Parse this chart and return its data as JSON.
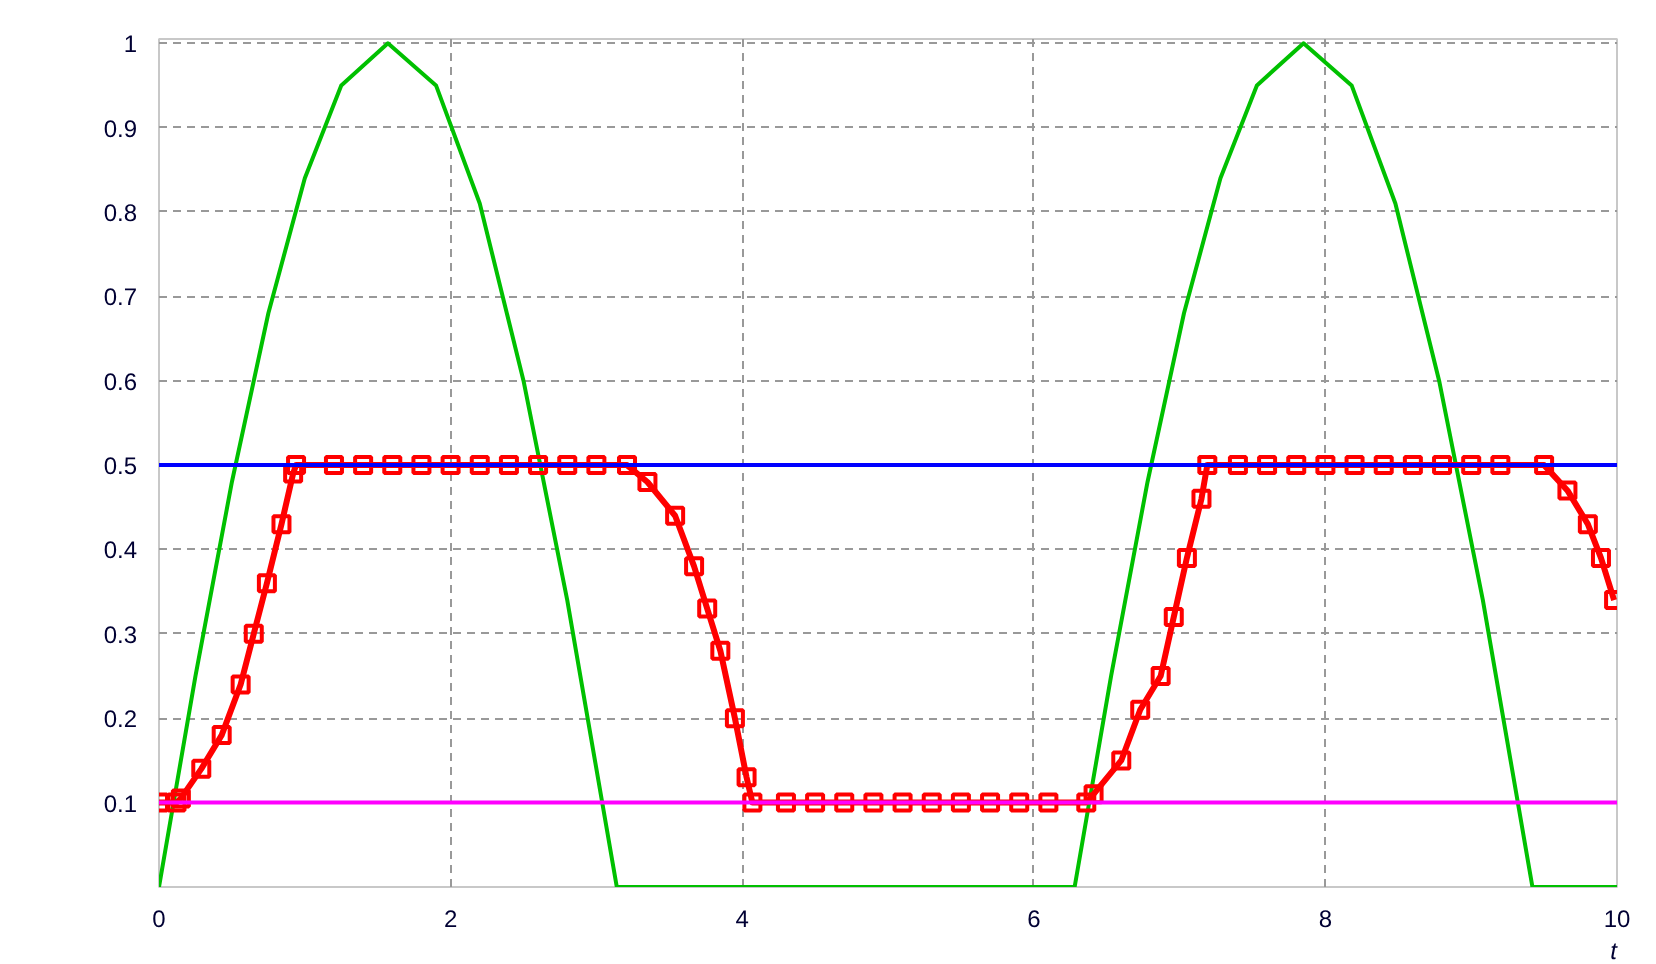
{
  "chart_data": {
    "type": "line",
    "xlabel": "t",
    "xlim": [
      0,
      10
    ],
    "ylim": [
      0,
      1.005
    ],
    "xticks": [
      0,
      2,
      4,
      6,
      8,
      10
    ],
    "yticks": [
      0.1,
      0.2,
      0.3,
      0.4,
      0.5,
      0.6,
      0.7,
      0.8,
      0.9,
      1
    ],
    "grid": true,
    "line_style": "solid",
    "series": [
      {
        "color": "#00c000",
        "marker": "none",
        "x": [
          0,
          0.25,
          0.5,
          0.75,
          1,
          1.25,
          1.57,
          1.9,
          2.2,
          2.5,
          2.8,
          3.14,
          6.28,
          6.53,
          6.78,
          7.03,
          7.28,
          7.53,
          7.85,
          8.18,
          8.48,
          8.78,
          9.08,
          9.42,
          10
        ],
        "values": [
          0,
          0.25,
          0.48,
          0.68,
          0.84,
          0.95,
          1,
          0.95,
          0.81,
          0.6,
          0.34,
          0,
          0,
          0.25,
          0.48,
          0.68,
          0.84,
          0.95,
          1,
          0.95,
          0.81,
          0.6,
          0.34,
          0,
          0
        ]
      },
      {
        "color": "#ff0000",
        "marker": "square",
        "x": [
          0,
          0.12,
          0.15,
          0.29,
          0.43,
          0.56,
          0.65,
          0.74,
          0.84,
          0.92,
          0.94,
          1.2,
          1.4,
          1.6,
          1.8,
          2.0,
          2.2,
          2.4,
          2.6,
          2.8,
          3.0,
          3.21,
          3.35,
          3.54,
          3.67,
          3.76,
          3.85,
          3.95,
          4.03,
          4.07,
          4.3,
          4.5,
          4.7,
          4.9,
          5.1,
          5.3,
          5.5,
          5.7,
          5.9,
          6.1,
          6.36,
          6.41,
          6.6,
          6.73,
          6.87,
          6.96,
          7.05,
          7.15,
          7.19,
          7.4,
          7.6,
          7.8,
          8.0,
          8.2,
          8.4,
          8.6,
          8.8,
          9.0,
          9.2,
          9.5,
          9.66,
          9.8,
          9.89,
          9.98
        ],
        "values": [
          0.1,
          0.1,
          0.105,
          0.14,
          0.18,
          0.24,
          0.3,
          0.36,
          0.43,
          0.49,
          0.5,
          0.5,
          0.5,
          0.5,
          0.5,
          0.5,
          0.5,
          0.5,
          0.5,
          0.5,
          0.5,
          0.5,
          0.48,
          0.44,
          0.38,
          0.33,
          0.28,
          0.2,
          0.13,
          0.1,
          0.1,
          0.1,
          0.1,
          0.1,
          0.1,
          0.1,
          0.1,
          0.1,
          0.1,
          0.1,
          0.1,
          0.11,
          0.15,
          0.21,
          0.25,
          0.32,
          0.39,
          0.46,
          0.5,
          0.5,
          0.5,
          0.5,
          0.5,
          0.5,
          0.5,
          0.5,
          0.5,
          0.5,
          0.5,
          0.5,
          0.47,
          0.43,
          0.39,
          0.34
        ]
      }
    ],
    "ref_lines": [
      {
        "axis": "y",
        "value": 0.5,
        "color": "#0000ff"
      },
      {
        "axis": "y",
        "value": 0.1,
        "color": "#ff00ff"
      }
    ]
  }
}
